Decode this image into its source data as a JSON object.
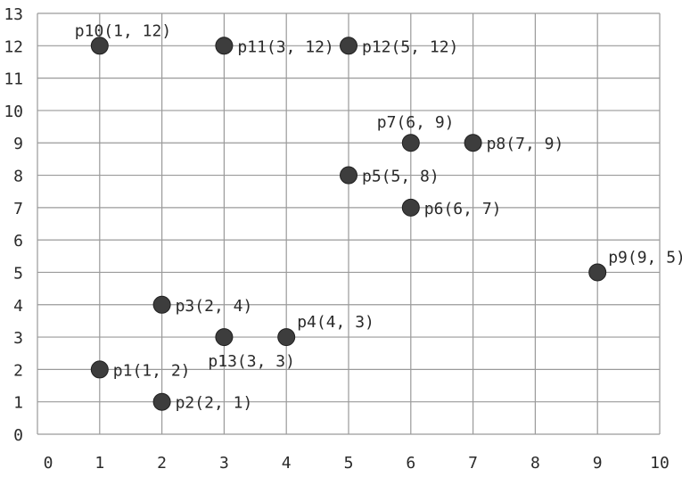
{
  "chart_data": {
    "type": "scatter",
    "title": "",
    "xlabel": "",
    "ylabel": "",
    "xlim": [
      0,
      10
    ],
    "ylim": [
      0,
      13
    ],
    "grid": true,
    "x_ticks": [
      "0",
      "1",
      "2",
      "3",
      "4",
      "5",
      "6",
      "7",
      "8",
      "9",
      "10"
    ],
    "y_ticks": [
      "0",
      "1",
      "2",
      "3",
      "4",
      "5",
      "6",
      "7",
      "8",
      "9",
      "10",
      "11",
      "12",
      "13"
    ],
    "colors": {
      "point": "#3d3d3d",
      "grid": "#9a9a9a",
      "text": "#2a2a2a"
    },
    "points": [
      {
        "label": "p1(1, 2)",
        "x": 1,
        "y": 2,
        "label_pos": "right"
      },
      {
        "label": "p2(2, 1)",
        "x": 2,
        "y": 1,
        "label_pos": "right"
      },
      {
        "label": "p3(2, 4)",
        "x": 2,
        "y": 4,
        "label_pos": "right"
      },
      {
        "label": "p4(4, 3)",
        "x": 4,
        "y": 3,
        "label_pos": "above-right"
      },
      {
        "label": "p5(5, 8)",
        "x": 5,
        "y": 8,
        "label_pos": "right"
      },
      {
        "label": "p6(6, 7)",
        "x": 6,
        "y": 7,
        "label_pos": "right"
      },
      {
        "label": "p7(6, 9)",
        "x": 6,
        "y": 9,
        "label_pos": "above-left"
      },
      {
        "label": "p8(7, 9)",
        "x": 7,
        "y": 9,
        "label_pos": "right"
      },
      {
        "label": "p9(9, 5)",
        "x": 9,
        "y": 5,
        "label_pos": "above-right"
      },
      {
        "label": "p10(1, 12)",
        "x": 1,
        "y": 12,
        "label_pos": "above"
      },
      {
        "label": "p11(3, 12)",
        "x": 3,
        "y": 12,
        "label_pos": "right"
      },
      {
        "label": "p12(5, 12)",
        "x": 5,
        "y": 12,
        "label_pos": "right"
      },
      {
        "label": "p13(3, 3)",
        "x": 3,
        "y": 3,
        "label_pos": "below"
      }
    ]
  }
}
